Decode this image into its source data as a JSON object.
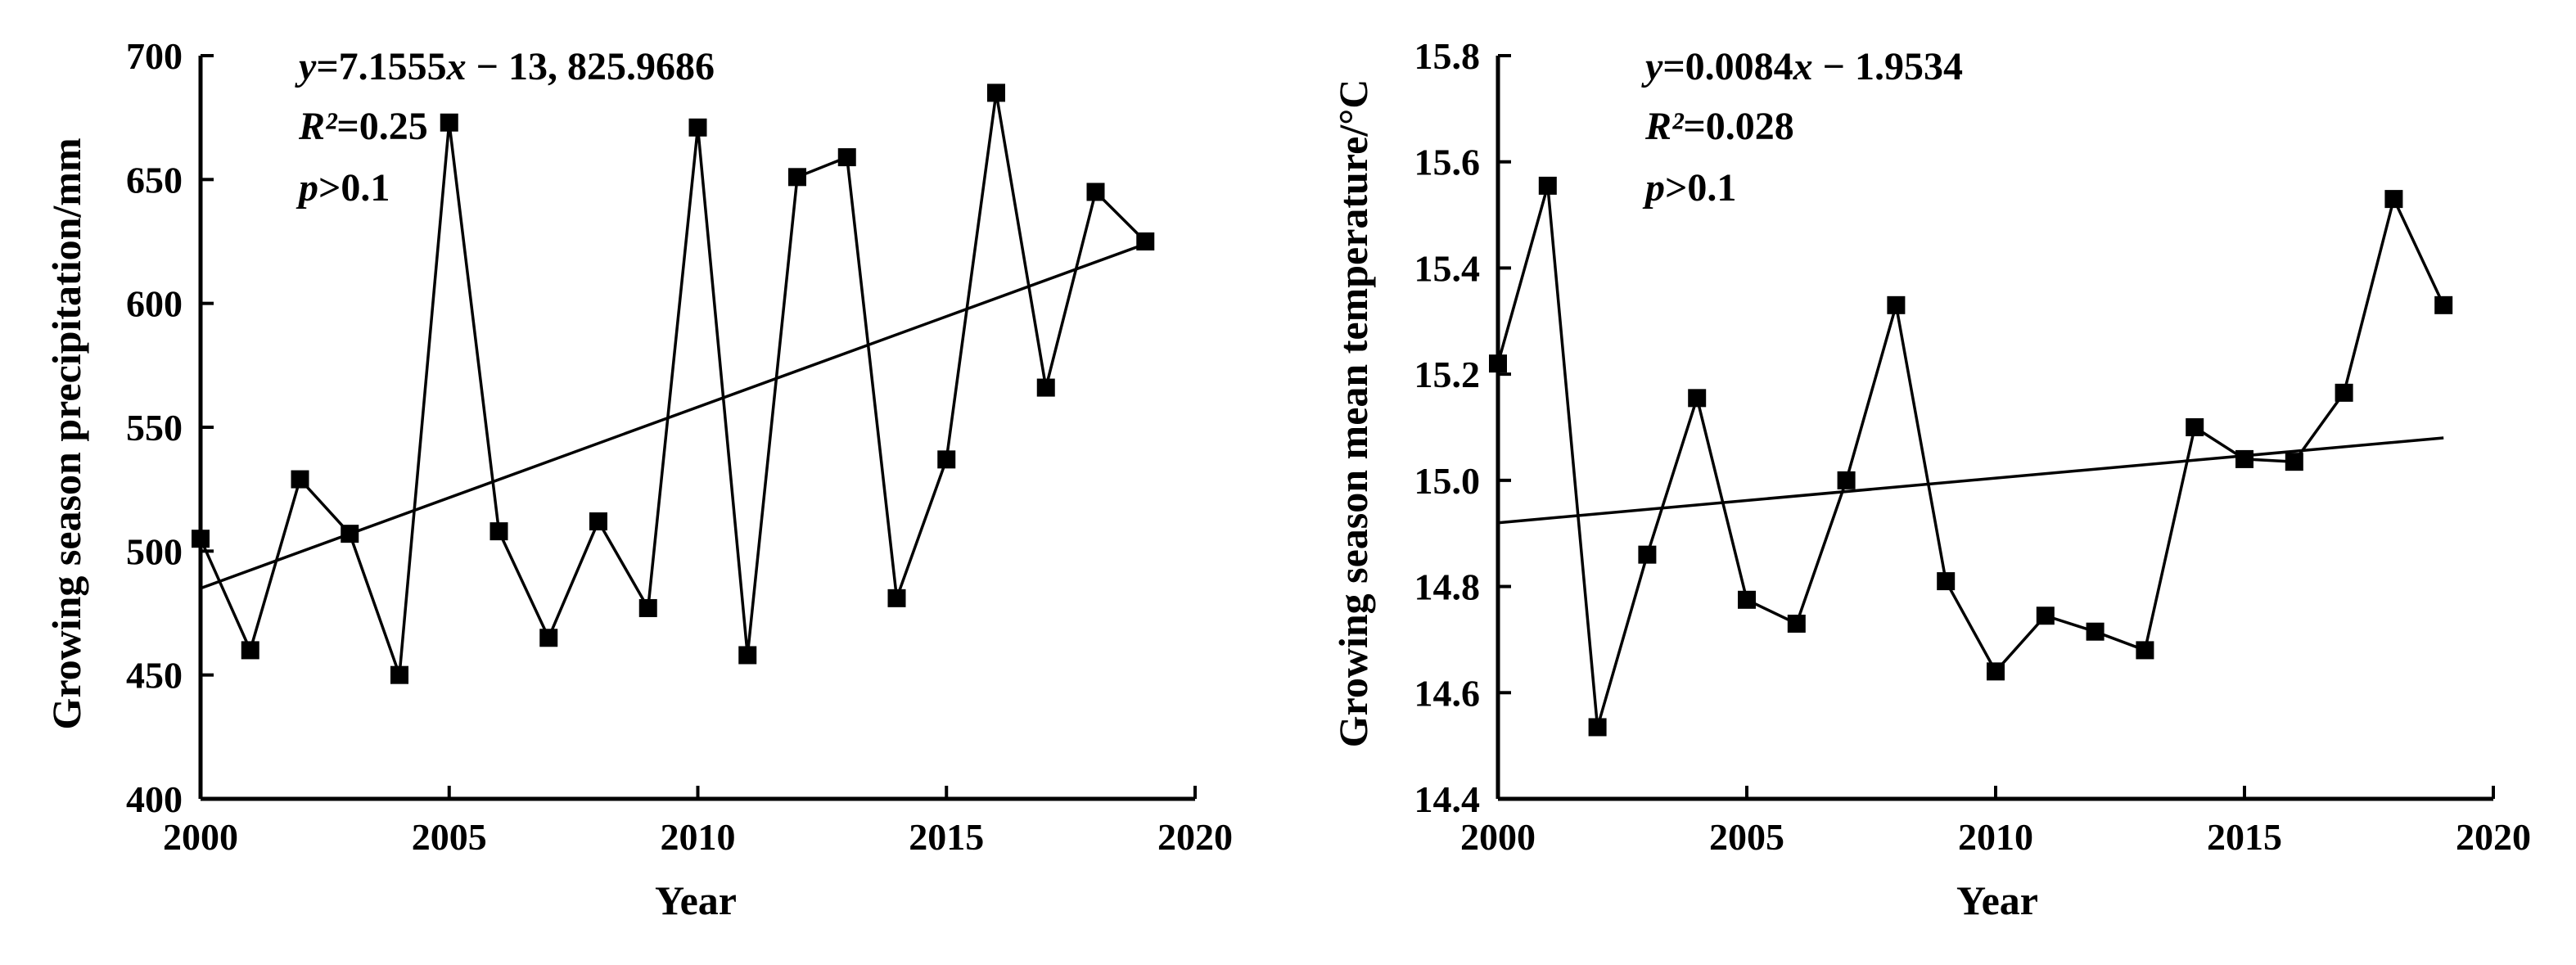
{
  "chart_data": [
    {
      "type": "line",
      "xlabel": "Year",
      "ylabel": "Growing season precipitation/mm",
      "xlim": [
        2000,
        2020
      ],
      "ylim": [
        400,
        700
      ],
      "xticks": [
        2000,
        2005,
        2010,
        2015,
        2020
      ],
      "yticks": [
        400,
        450,
        500,
        550,
        600,
        650,
        700
      ],
      "grid": false,
      "series": [
        {
          "name": "Growing season precipitation",
          "marker": "square",
          "x": [
            2000,
            2001,
            2002,
            2003,
            2004,
            2005,
            2006,
            2007,
            2008,
            2009,
            2010,
            2011,
            2012,
            2013,
            2014,
            2015,
            2016,
            2017,
            2018,
            2019
          ],
          "values": [
            505,
            460,
            529,
            507,
            450,
            673,
            508,
            465,
            512,
            477,
            671,
            458,
            651,
            659,
            481,
            537,
            685,
            566,
            645,
            625
          ]
        }
      ],
      "trend": {
        "x": [
          2000,
          2019
        ],
        "y": [
          485,
          624
        ]
      },
      "annotations": {
        "equation": {
          "var_y": "y",
          "mid": "=7.1555",
          "var_x": "x",
          "rest": " − 13, 825.9686"
        },
        "r2": {
          "label": "R²",
          "value": "=0.25"
        },
        "p": {
          "label": "p",
          "value": ">0.1"
        }
      }
    },
    {
      "type": "line",
      "xlabel": "Year",
      "ylabel": "Growing season mean temperature/°C",
      "xlim": [
        2000,
        2020
      ],
      "ylim": [
        14.4,
        15.8
      ],
      "xticks": [
        2000,
        2005,
        2010,
        2015,
        2020
      ],
      "yticks": [
        "14.4",
        "14.6",
        "14.8",
        "15.0",
        "15.2",
        "15.4",
        "15.6",
        "15.8"
      ],
      "grid": false,
      "series": [
        {
          "name": "Growing season mean temperature",
          "marker": "square",
          "x": [
            2000,
            2001,
            2002,
            2003,
            2004,
            2005,
            2006,
            2007,
            2008,
            2009,
            2010,
            2011,
            2012,
            2013,
            2014,
            2015,
            2016,
            2017,
            2018,
            2019
          ],
          "values": [
            15.22,
            15.555,
            14.535,
            14.86,
            15.155,
            14.775,
            14.73,
            15.0,
            15.33,
            14.81,
            14.64,
            14.745,
            14.715,
            14.68,
            15.1,
            15.04,
            15.035,
            15.165,
            15.53,
            15.33
          ]
        }
      ],
      "trend": {
        "x": [
          2000,
          2019
        ],
        "y": [
          14.92,
          15.08
        ]
      },
      "annotations": {
        "equation": {
          "var_y": "y",
          "mid": "=0.0084",
          "var_x": "x",
          "rest": " − 1.9534"
        },
        "r2": {
          "label": "R²",
          "value": "=0.028"
        },
        "p": {
          "label": "p",
          "value": ">0.1"
        }
      }
    }
  ]
}
